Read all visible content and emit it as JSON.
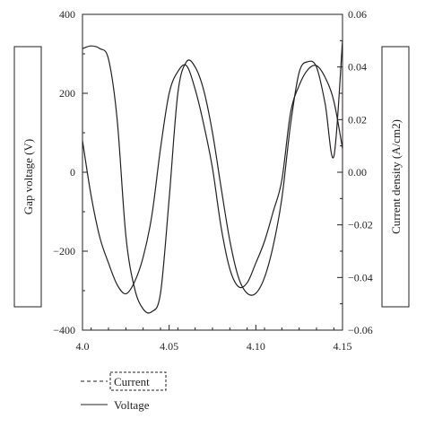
{
  "chart_data": {
    "type": "line",
    "x_ticks": [
      "4.0",
      "4.05",
      "4.10",
      "4.15"
    ],
    "x_tick_values": [
      4.0,
      4.05,
      4.1,
      4.15
    ],
    "xlim": [
      4.0,
      4.15
    ],
    "left_axis": {
      "label": "Gap voltage (V)",
      "ylim": [
        -400,
        400
      ],
      "ticks": [
        "400",
        "200",
        "0",
        "−200",
        "−400"
      ],
      "tick_values": [
        400,
        200,
        0,
        -200,
        -400
      ]
    },
    "right_axis": {
      "label": "Current density (A/cm2)",
      "ylim": [
        -0.06,
        0.06
      ],
      "ticks": [
        "0.06",
        "0.04",
        "0.02",
        "0.00",
        "−0.02",
        "−0.04",
        "−0.06"
      ],
      "tick_values": [
        0.06,
        0.04,
        0.02,
        0.0,
        -0.02,
        -0.04,
        -0.06
      ]
    },
    "series": [
      {
        "name": "Current",
        "axis": "right",
        "x": [
          4.0,
          4.005,
          4.01,
          4.015,
          4.02,
          4.025,
          4.03,
          4.035,
          4.04,
          4.045,
          4.05,
          4.055,
          4.06,
          4.065,
          4.07,
          4.075,
          4.08,
          4.085,
          4.09,
          4.095,
          4.1,
          4.105,
          4.11,
          4.115,
          4.12,
          4.125,
          4.13,
          4.135,
          4.14,
          4.145,
          4.15
        ],
        "values": [
          0.047,
          0.048,
          0.047,
          0.043,
          0.02,
          -0.024,
          -0.044,
          -0.052,
          -0.053,
          -0.046,
          -0.01,
          0.03,
          0.042,
          0.04,
          0.031,
          0.015,
          -0.006,
          -0.026,
          -0.04,
          -0.046,
          -0.046,
          -0.04,
          -0.028,
          -0.01,
          0.018,
          0.038,
          0.042,
          0.04,
          0.026,
          0.006,
          0.05
        ]
      },
      {
        "name": "Voltage",
        "axis": "left",
        "x": [
          4.0,
          4.005,
          4.01,
          4.015,
          4.02,
          4.025,
          4.03,
          4.035,
          4.04,
          4.045,
          4.05,
          4.055,
          4.06,
          4.065,
          4.07,
          4.075,
          4.08,
          4.085,
          4.09,
          4.095,
          4.1,
          4.105,
          4.11,
          4.115,
          4.12,
          4.125,
          4.13,
          4.135,
          4.14,
          4.145,
          4.15
        ],
        "values": [
          80,
          -60,
          -165,
          -230,
          -285,
          -308,
          -278,
          -215,
          -110,
          60,
          200,
          255,
          270,
          210,
          120,
          10,
          -140,
          -245,
          -290,
          -280,
          -230,
          -175,
          -100,
          -20,
          150,
          220,
          260,
          270,
          240,
          180,
          60
        ]
      }
    ],
    "legend": [
      {
        "name": "Current",
        "style": "dashed",
        "boxed": true
      },
      {
        "name": "Voltage",
        "style": "solid",
        "boxed": false
      }
    ],
    "legend_position": "bottom-left",
    "grid": false
  },
  "colors": {
    "line": "#231f20",
    "frame": "#231f20",
    "background": "#ffffff"
  }
}
